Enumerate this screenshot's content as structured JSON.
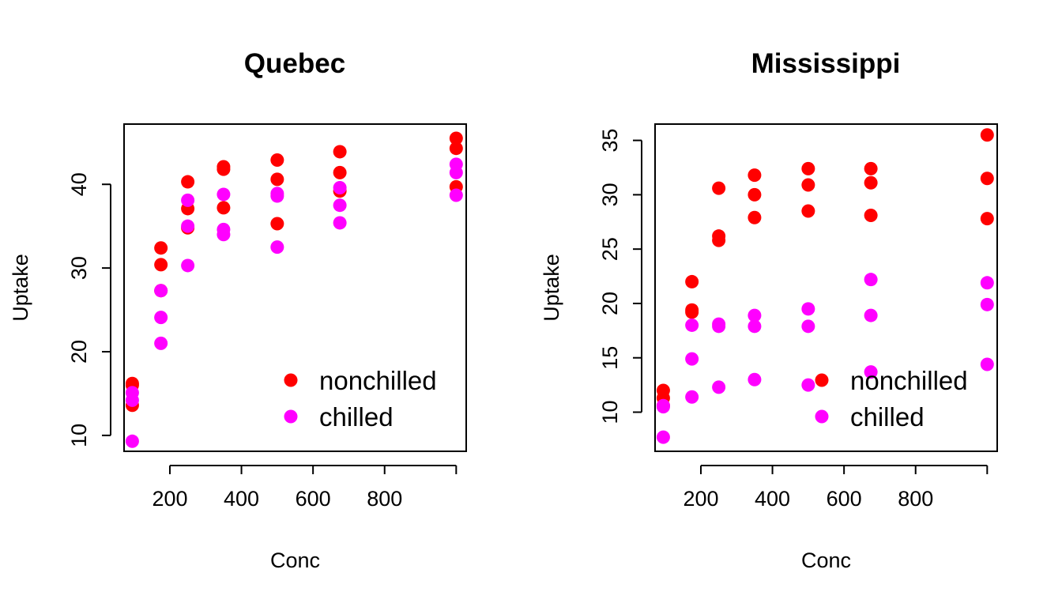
{
  "chart_data": [
    {
      "type": "scatter",
      "title": "Quebec",
      "xlabel": "Conc",
      "ylabel": "Uptake",
      "xlim": [
        72,
        1028
      ],
      "ylim": [
        8.1,
        47.2
      ],
      "xticks": [
        200,
        400,
        600,
        800
      ],
      "yticks": [
        10,
        20,
        30,
        40
      ],
      "grid": false,
      "legend_position": "bottom-right",
      "series": [
        {
          "name": "nonchilled",
          "color": "#FF0000",
          "points": [
            {
              "x": 95,
              "y": 16.0
            },
            {
              "x": 95,
              "y": 13.6
            },
            {
              "x": 95,
              "y": 16.2
            },
            {
              "x": 175,
              "y": 30.4
            },
            {
              "x": 175,
              "y": 27.3
            },
            {
              "x": 175,
              "y": 32.4
            },
            {
              "x": 250,
              "y": 34.8
            },
            {
              "x": 250,
              "y": 37.1
            },
            {
              "x": 250,
              "y": 40.3
            },
            {
              "x": 350,
              "y": 37.2
            },
            {
              "x": 350,
              "y": 41.8
            },
            {
              "x": 350,
              "y": 42.1
            },
            {
              "x": 500,
              "y": 35.3
            },
            {
              "x": 500,
              "y": 40.6
            },
            {
              "x": 500,
              "y": 42.9
            },
            {
              "x": 675,
              "y": 39.2
            },
            {
              "x": 675,
              "y": 41.4
            },
            {
              "x": 675,
              "y": 43.9
            },
            {
              "x": 1000,
              "y": 39.7
            },
            {
              "x": 1000,
              "y": 44.3
            },
            {
              "x": 1000,
              "y": 45.5
            }
          ]
        },
        {
          "name": "chilled",
          "color": "#FF00FF",
          "points": [
            {
              "x": 95,
              "y": 14.2
            },
            {
              "x": 95,
              "y": 9.3
            },
            {
              "x": 95,
              "y": 15.1
            },
            {
              "x": 175,
              "y": 24.1
            },
            {
              "x": 175,
              "y": 27.3
            },
            {
              "x": 175,
              "y": 21.0
            },
            {
              "x": 250,
              "y": 30.3
            },
            {
              "x": 250,
              "y": 35.0
            },
            {
              "x": 250,
              "y": 38.1
            },
            {
              "x": 350,
              "y": 34.6
            },
            {
              "x": 350,
              "y": 38.8
            },
            {
              "x": 350,
              "y": 34.0
            },
            {
              "x": 500,
              "y": 32.5
            },
            {
              "x": 500,
              "y": 38.6
            },
            {
              "x": 500,
              "y": 38.9
            },
            {
              "x": 675,
              "y": 35.4
            },
            {
              "x": 675,
              "y": 37.5
            },
            {
              "x": 675,
              "y": 39.6
            },
            {
              "x": 1000,
              "y": 38.7
            },
            {
              "x": 1000,
              "y": 42.4
            },
            {
              "x": 1000,
              "y": 41.4
            }
          ]
        }
      ]
    },
    {
      "type": "scatter",
      "title": "Mississippi",
      "xlabel": "Conc",
      "ylabel": "Uptake",
      "xlim": [
        72,
        1028
      ],
      "ylim": [
        6.4,
        36.5
      ],
      "xticks": [
        200,
        400,
        600,
        800
      ],
      "yticks": [
        10,
        15,
        20,
        25,
        30,
        35
      ],
      "grid": false,
      "legend_position": "bottom-right",
      "series": [
        {
          "name": "nonchilled",
          "color": "#FF0000",
          "points": [
            {
              "x": 95,
              "y": 10.6
            },
            {
              "x": 95,
              "y": 12.0
            },
            {
              "x": 95,
              "y": 11.3
            },
            {
              "x": 175,
              "y": 19.2
            },
            {
              "x": 175,
              "y": 22.0
            },
            {
              "x": 175,
              "y": 19.4
            },
            {
              "x": 250,
              "y": 26.2
            },
            {
              "x": 250,
              "y": 30.6
            },
            {
              "x": 250,
              "y": 25.8
            },
            {
              "x": 350,
              "y": 30.0
            },
            {
              "x": 350,
              "y": 31.8
            },
            {
              "x": 350,
              "y": 27.9
            },
            {
              "x": 500,
              "y": 30.9
            },
            {
              "x": 500,
              "y": 32.4
            },
            {
              "x": 500,
              "y": 28.5
            },
            {
              "x": 675,
              "y": 32.4
            },
            {
              "x": 675,
              "y": 31.1
            },
            {
              "x": 675,
              "y": 28.1
            },
            {
              "x": 1000,
              "y": 35.5
            },
            {
              "x": 1000,
              "y": 31.5
            },
            {
              "x": 1000,
              "y": 27.8
            }
          ]
        },
        {
          "name": "chilled",
          "color": "#FF00FF",
          "points": [
            {
              "x": 95,
              "y": 10.5
            },
            {
              "x": 95,
              "y": 7.7
            },
            {
              "x": 95,
              "y": 10.6
            },
            {
              "x": 175,
              "y": 14.9
            },
            {
              "x": 175,
              "y": 11.4
            },
            {
              "x": 175,
              "y": 18.0
            },
            {
              "x": 250,
              "y": 18.1
            },
            {
              "x": 250,
              "y": 12.3
            },
            {
              "x": 250,
              "y": 17.9
            },
            {
              "x": 350,
              "y": 18.9
            },
            {
              "x": 350,
              "y": 13.0
            },
            {
              "x": 350,
              "y": 17.9
            },
            {
              "x": 500,
              "y": 19.5
            },
            {
              "x": 500,
              "y": 12.5
            },
            {
              "x": 500,
              "y": 17.9
            },
            {
              "x": 675,
              "y": 22.2
            },
            {
              "x": 675,
              "y": 13.7
            },
            {
              "x": 675,
              "y": 18.9
            },
            {
              "x": 1000,
              "y": 21.9
            },
            {
              "x": 1000,
              "y": 14.4
            },
            {
              "x": 1000,
              "y": 19.9
            }
          ]
        }
      ]
    }
  ]
}
